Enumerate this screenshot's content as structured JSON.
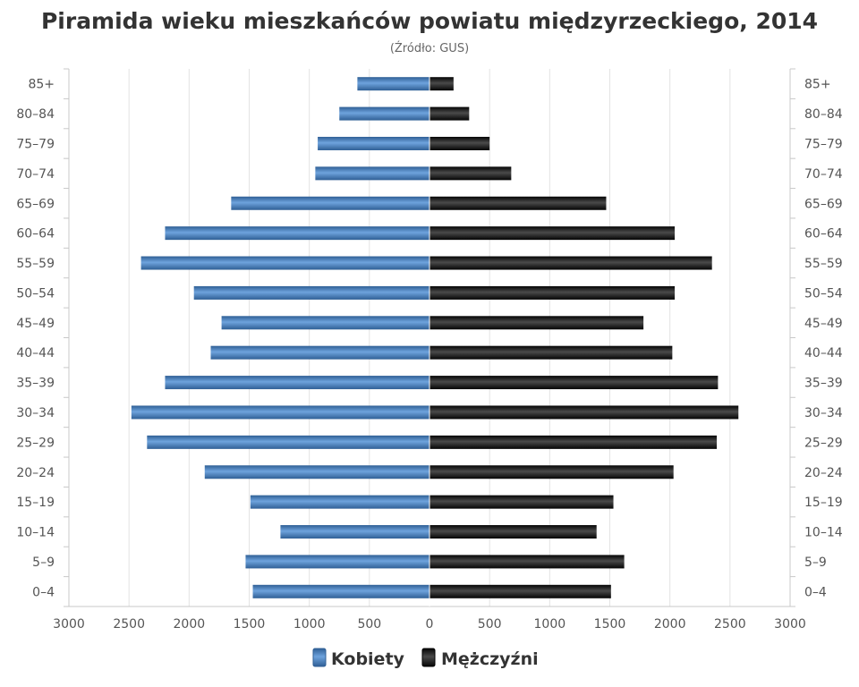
{
  "chart_data": {
    "type": "bar",
    "orientation": "horizontal-pyramid",
    "title": "Piramida wieku mieszkańców powiatu międzyrzeckiego, 2014",
    "subtitle": "(Źródło: GUS)",
    "categories": [
      "85+",
      "80–84",
      "75–79",
      "70–74",
      "65–69",
      "60–64",
      "55–59",
      "50–54",
      "45–49",
      "40–44",
      "35–39",
      "30–34",
      "25–29",
      "20–24",
      "15–19",
      "10–14",
      "5–9",
      "0–4"
    ],
    "series": [
      {
        "name": "Kobiety",
        "color": "#4a86c8",
        "values": [
          600,
          750,
          930,
          950,
          1650,
          2200,
          2400,
          1960,
          1730,
          1820,
          2200,
          2480,
          2350,
          1870,
          1490,
          1240,
          1530,
          1470
        ]
      },
      {
        "name": "Mężczyźni",
        "color": "#1e1e1e",
        "values": [
          200,
          330,
          500,
          680,
          1470,
          2040,
          2350,
          2040,
          1780,
          2020,
          2400,
          2570,
          2390,
          2030,
          1530,
          1390,
          1620,
          1510
        ]
      }
    ],
    "xlim": [
      -3000,
      3000
    ],
    "x_ticks": [
      "3000",
      "2500",
      "2000",
      "1500",
      "1000",
      "500",
      "0",
      "500",
      "1000",
      "1500",
      "2000",
      "2500",
      "3000"
    ],
    "grid": true,
    "legend_position": "bottom-center"
  }
}
